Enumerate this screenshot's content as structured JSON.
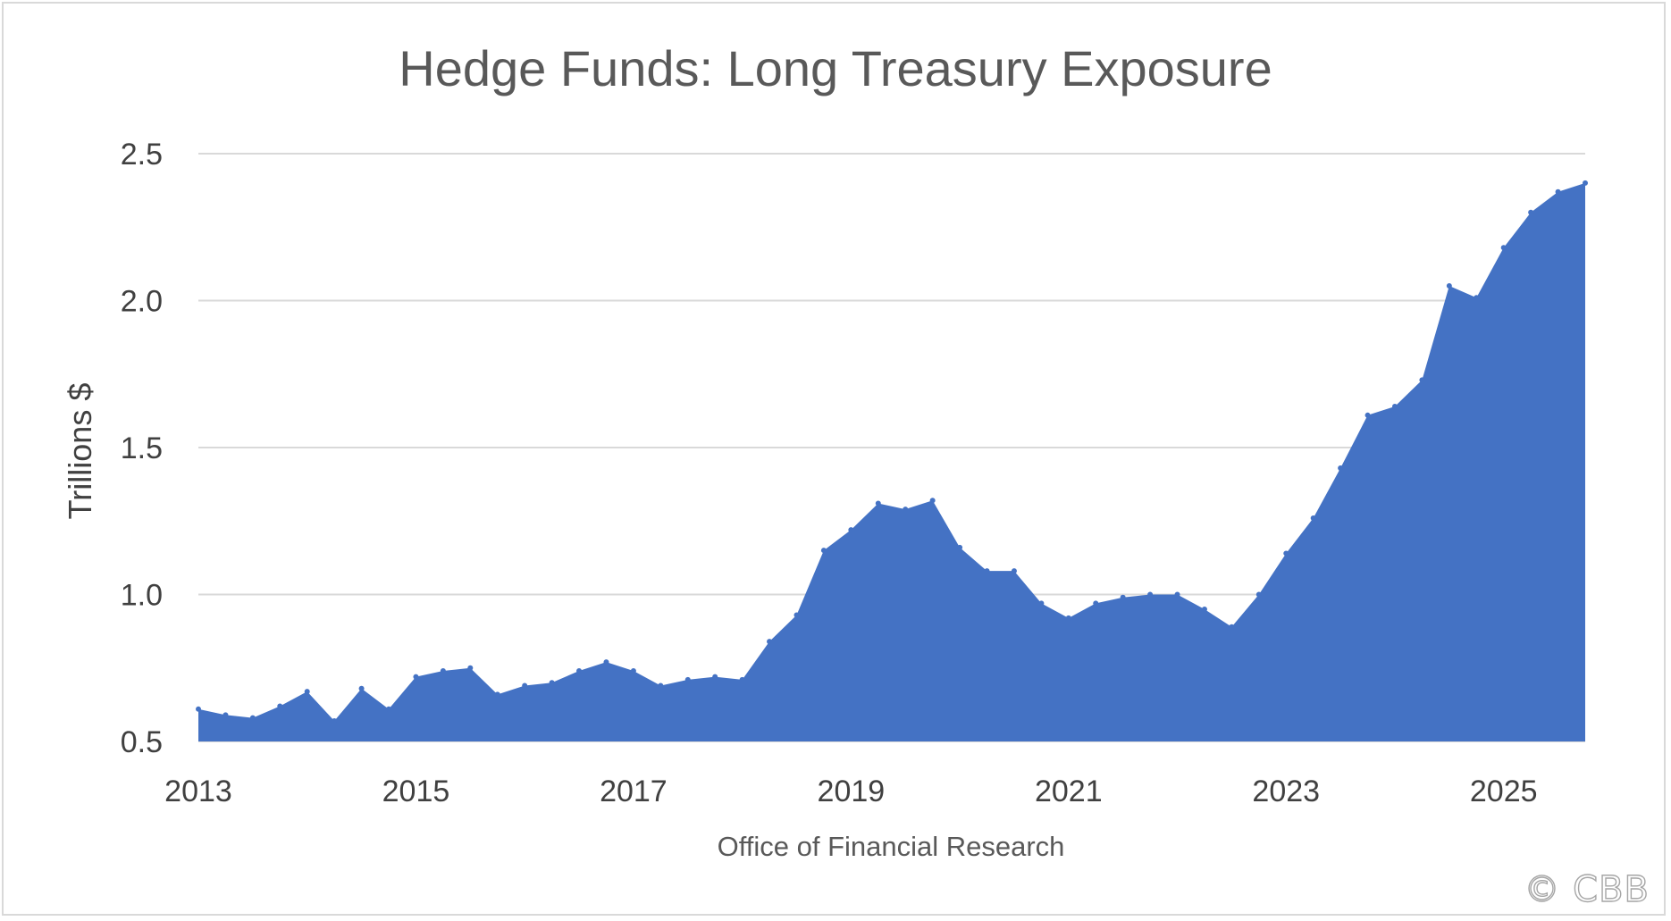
{
  "chart_data": {
    "type": "area",
    "title": "Hedge Funds: Long Treasury Exposure",
    "xlabel": "Office of Financial Research",
    "ylabel": "Trillions $",
    "xlim": [
      2013.0,
      2025.75
    ],
    "ylim": [
      0.5,
      2.5
    ],
    "yticks": [
      "0.5",
      "1.0",
      "1.5",
      "2.0",
      "2.5"
    ],
    "yticks_values": [
      0.5,
      1.0,
      1.5,
      2.0,
      2.5
    ],
    "xticks": [
      "2013",
      "2015",
      "2017",
      "2019",
      "2021",
      "2023",
      "2025"
    ],
    "xticks_values": [
      2013,
      2015,
      2017,
      2019,
      2021,
      2023,
      2025
    ],
    "grid": true,
    "legend": "none",
    "color": "#4472C4",
    "x": [
      2013.0,
      2013.25,
      2013.5,
      2013.75,
      2014.0,
      2014.25,
      2014.5,
      2014.75,
      2015.0,
      2015.25,
      2015.5,
      2015.75,
      2016.0,
      2016.25,
      2016.5,
      2016.75,
      2017.0,
      2017.25,
      2017.5,
      2017.75,
      2018.0,
      2018.25,
      2018.5,
      2018.75,
      2019.0,
      2019.25,
      2019.5,
      2019.75,
      2020.0,
      2020.25,
      2020.5,
      2020.75,
      2021.0,
      2021.25,
      2021.5,
      2021.75,
      2022.0,
      2022.25,
      2022.5,
      2022.75,
      2023.0,
      2023.25,
      2023.5,
      2023.75,
      2024.0,
      2024.25,
      2024.5,
      2024.75,
      2025.0,
      2025.25,
      2025.5,
      2025.75
    ],
    "values": [
      0.61,
      0.59,
      0.58,
      0.62,
      0.67,
      0.57,
      0.68,
      0.61,
      0.72,
      0.74,
      0.75,
      0.66,
      0.69,
      0.7,
      0.74,
      0.77,
      0.74,
      0.69,
      0.71,
      0.72,
      0.71,
      0.84,
      0.93,
      1.15,
      1.22,
      1.31,
      1.29,
      1.32,
      1.16,
      1.08,
      1.08,
      0.97,
      0.92,
      0.97,
      0.99,
      1.0,
      1.0,
      0.95,
      0.89,
      1.0,
      1.14,
      1.26,
      1.43,
      1.61,
      1.64,
      1.73,
      2.05,
      2.01,
      2.18,
      2.3,
      2.37,
      2.4
    ]
  },
  "watermark": "© CBB"
}
